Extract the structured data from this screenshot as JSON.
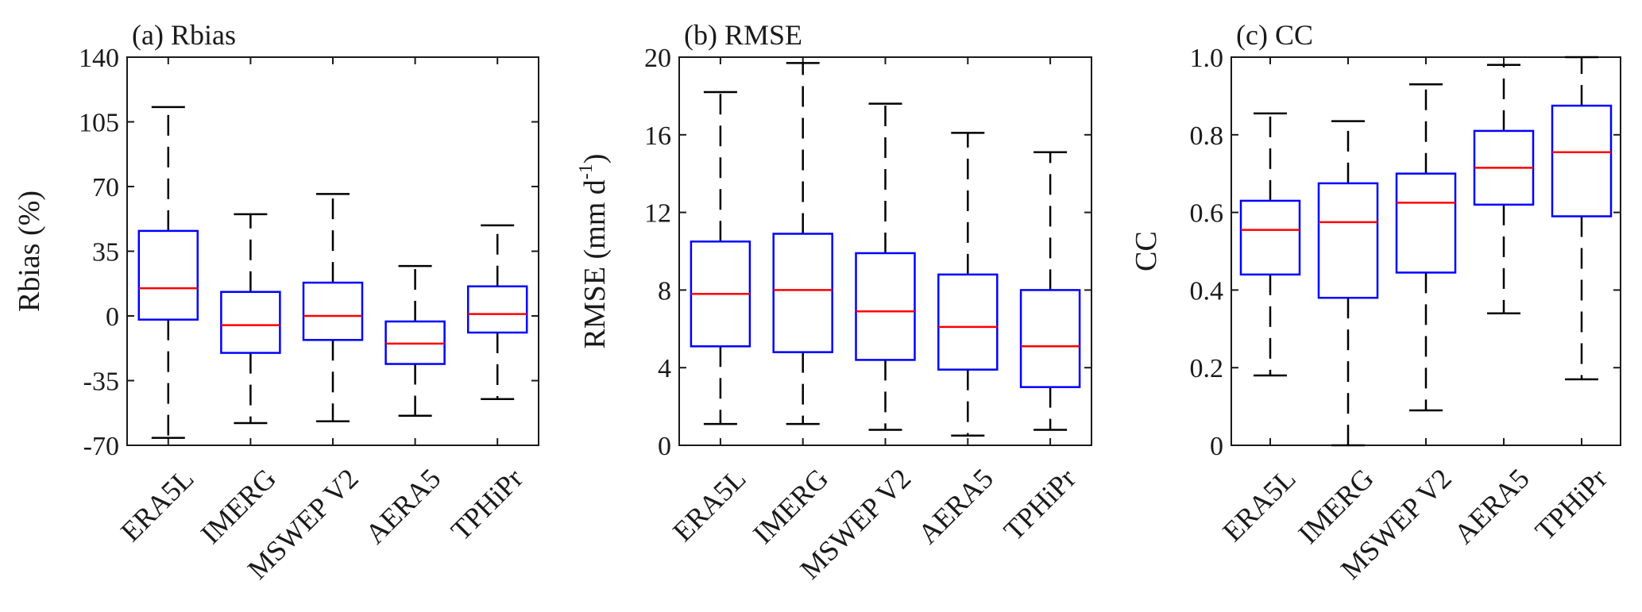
{
  "chart_data": [
    {
      "type": "boxplot",
      "title": "(a) Rbias",
      "ylabel": "Rbias (%)",
      "ylabel_sup": "",
      "ylabel_tail": "",
      "ylim": [
        -70,
        140
      ],
      "yticks": [
        -70,
        -35,
        0,
        35,
        70,
        105,
        140
      ],
      "ytick_labels": [
        "-70",
        "-35",
        "0",
        "35",
        "70",
        "105",
        "140"
      ],
      "categories": [
        "ERA5L",
        "IMERG",
        "MSWEP V2",
        "AERA5",
        "TPHiPr"
      ],
      "boxes": [
        {
          "whisker_low": -66,
          "q1": -2,
          "median": 15,
          "q3": 46,
          "whisker_high": 113
        },
        {
          "whisker_low": -58,
          "q1": -20,
          "median": -5,
          "q3": 13,
          "whisker_high": 55
        },
        {
          "whisker_low": -57,
          "q1": -13,
          "median": 0,
          "q3": 18,
          "whisker_high": 66
        },
        {
          "whisker_low": -54,
          "q1": -26,
          "median": -15,
          "q3": -3,
          "whisker_high": 27
        },
        {
          "whisker_low": -45,
          "q1": -9,
          "median": 1,
          "q3": 16,
          "whisker_high": 49
        }
      ]
    },
    {
      "type": "boxplot",
      "title": "(b) RMSE",
      "ylabel": "RMSE (mm d",
      "ylabel_sup": "-1",
      "ylabel_tail": ")",
      "ylim": [
        0,
        20
      ],
      "yticks": [
        0,
        4,
        8,
        12,
        16,
        20
      ],
      "ytick_labels": [
        "0",
        "4",
        "8",
        "12",
        "16",
        "20"
      ],
      "categories": [
        "ERA5L",
        "IMERG",
        "MSWEP V2",
        "AERA5",
        "TPHiPr"
      ],
      "boxes": [
        {
          "whisker_low": 1.1,
          "q1": 5.1,
          "median": 7.8,
          "q3": 10.5,
          "whisker_high": 18.2
        },
        {
          "whisker_low": 1.1,
          "q1": 4.8,
          "median": 8.0,
          "q3": 10.9,
          "whisker_high": 19.7
        },
        {
          "whisker_low": 0.8,
          "q1": 4.4,
          "median": 6.9,
          "q3": 9.9,
          "whisker_high": 17.6
        },
        {
          "whisker_low": 0.5,
          "q1": 3.9,
          "median": 6.1,
          "q3": 8.8,
          "whisker_high": 16.1
        },
        {
          "whisker_low": 0.8,
          "q1": 3.0,
          "median": 5.1,
          "q3": 8.0,
          "whisker_high": 15.1
        }
      ]
    },
    {
      "type": "boxplot",
      "title": "(c) CC",
      "ylabel": "CC",
      "ylabel_sup": "",
      "ylabel_tail": "",
      "ylim": [
        0,
        1
      ],
      "yticks": [
        0,
        0.2,
        0.4,
        0.6,
        0.8,
        1.0
      ],
      "ytick_labels": [
        "0",
        "0.2",
        "0.4",
        "0.6",
        "0.8",
        "1.0"
      ],
      "categories": [
        "ERA5L",
        "IMERG",
        "MSWEP V2",
        "AERA5",
        "TPHiPr"
      ],
      "boxes": [
        {
          "whisker_low": 0.18,
          "q1": 0.44,
          "median": 0.555,
          "q3": 0.63,
          "whisker_high": 0.855
        },
        {
          "whisker_low": 0.0,
          "q1": 0.38,
          "median": 0.575,
          "q3": 0.675,
          "whisker_high": 0.835
        },
        {
          "whisker_low": 0.09,
          "q1": 0.445,
          "median": 0.625,
          "q3": 0.7,
          "whisker_high": 0.93
        },
        {
          "whisker_low": 0.34,
          "q1": 0.62,
          "median": 0.715,
          "q3": 0.81,
          "whisker_high": 0.98
        },
        {
          "whisker_low": 0.17,
          "q1": 0.59,
          "median": 0.755,
          "q3": 0.875,
          "whisker_high": 1.0
        }
      ]
    }
  ],
  "colors": {
    "box": "#0000ff",
    "median": "#ff0000",
    "whisker": "#000000",
    "axes": "#1a1a1a"
  }
}
